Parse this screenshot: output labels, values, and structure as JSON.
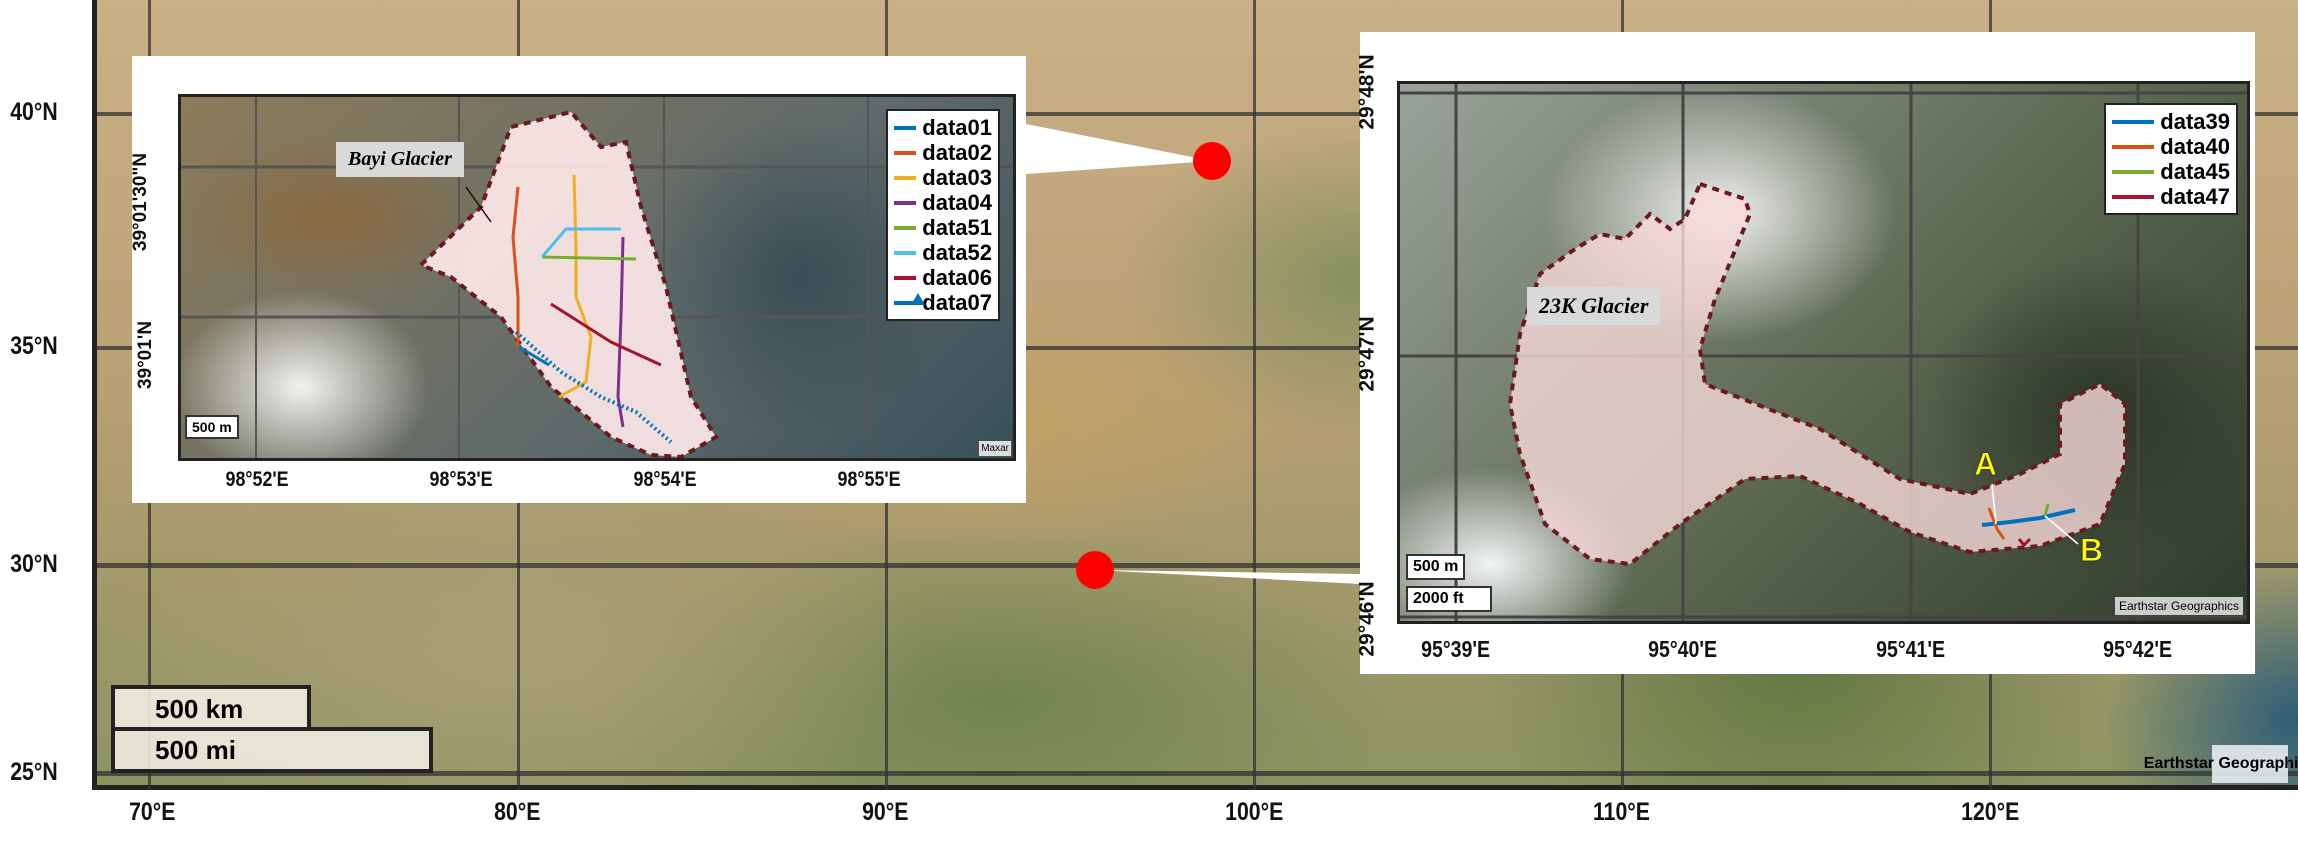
{
  "main_map": {
    "lat_labels": [
      "40°N",
      "35°N",
      "30°N",
      "25°N"
    ],
    "lon_labels": [
      "70°E",
      "80°E",
      "90°E",
      "100°E",
      "110°E",
      "120°E"
    ],
    "scale_km": "500 km",
    "scale_mi": "500 mi",
    "attribution": "Earthstar Geographics",
    "marker_color": "#ff0000"
  },
  "bayi_inset": {
    "glacier_label": "Bayi Glacier",
    "lat_labels": [
      "39°01'30\"N",
      "39°01'N"
    ],
    "lon_labels": [
      "98°52'E",
      "98°53'E",
      "98°54'E",
      "98°55'E"
    ],
    "scale": "500 m",
    "attribution": "Maxar",
    "legend": [
      {
        "label": "data01",
        "color": "#0072bd"
      },
      {
        "label": "data02",
        "color": "#d95319"
      },
      {
        "label": "data03",
        "color": "#edb120"
      },
      {
        "label": "data04",
        "color": "#7e2f8e"
      },
      {
        "label": "data51",
        "color": "#77ac30"
      },
      {
        "label": "data52",
        "color": "#4dbeee"
      },
      {
        "label": "data06",
        "color": "#a2142f"
      },
      {
        "label": "data07",
        "color": "#0072bd",
        "marker": "triangle"
      }
    ]
  },
  "k23_inset": {
    "glacier_label": "23K Glacier",
    "lat_labels": [
      "29°48'N",
      "29°47'N",
      "29°46'N"
    ],
    "lon_labels": [
      "95°39'E",
      "95°40'E",
      "95°41'E",
      "95°42'E"
    ],
    "scale_m": "500 m",
    "scale_ft": "2000 ft",
    "attribution": "Earthstar Geographics",
    "point_a": "A",
    "point_b": "B",
    "legend": [
      {
        "label": "data39",
        "color": "#0072bd"
      },
      {
        "label": "data40",
        "color": "#d95319"
      },
      {
        "label": "data45",
        "color": "#77ac30"
      },
      {
        "label": "data47",
        "color": "#a2142f"
      }
    ]
  }
}
